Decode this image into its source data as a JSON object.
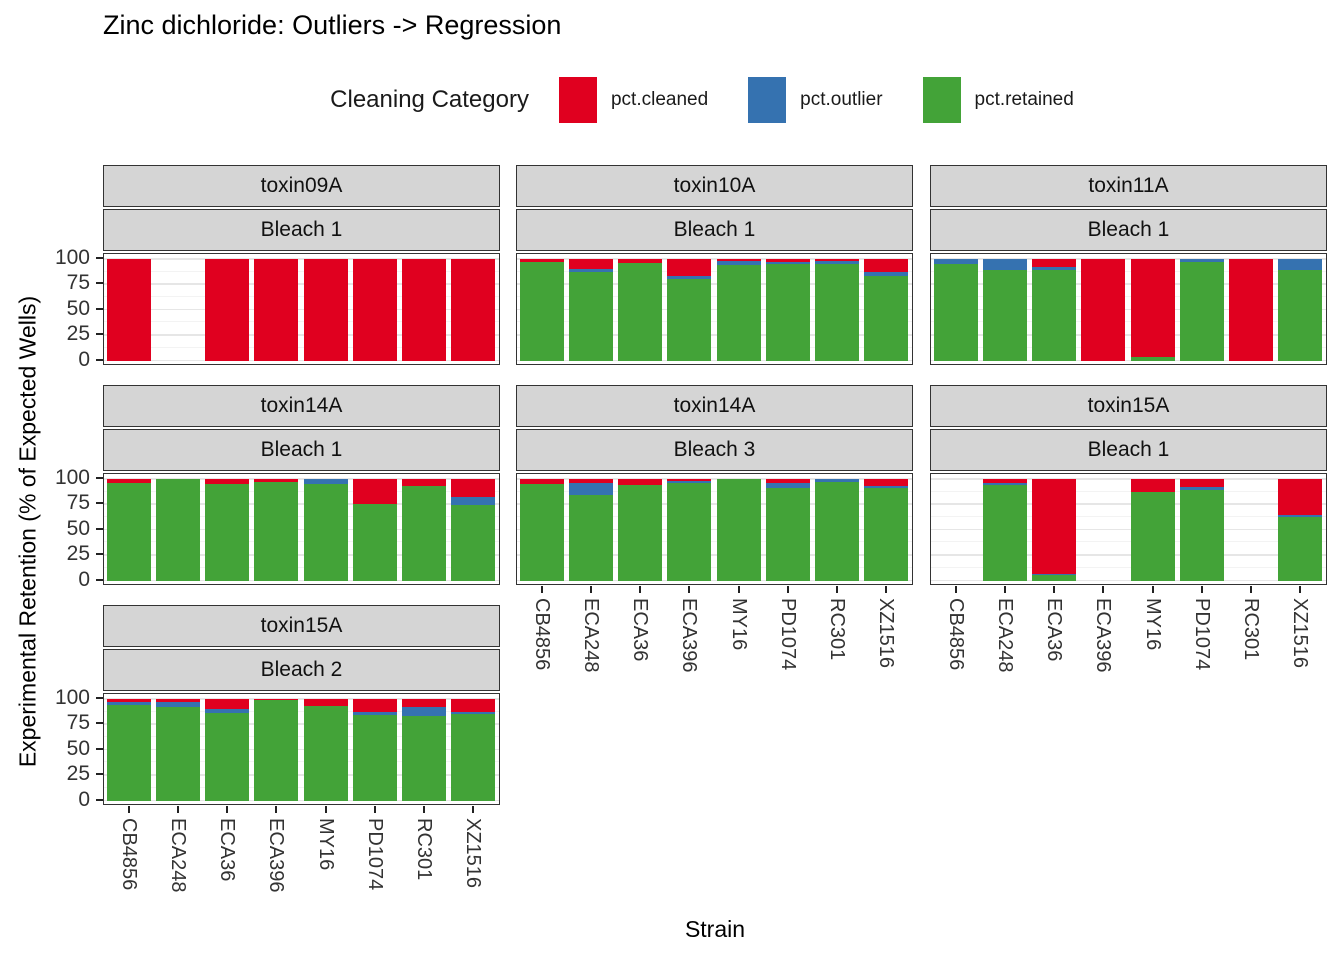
{
  "title": "Zinc dichloride: Outliers -> Regression",
  "legend": {
    "title": "Cleaning Category",
    "items": [
      {
        "label": "pct.cleaned",
        "color": "#e0001f"
      },
      {
        "label": "pct.outlier",
        "color": "#3572b0"
      },
      {
        "label": "pct.retained",
        "color": "#43a338"
      }
    ]
  },
  "axes": {
    "x_title": "Strain",
    "y_title": "Experimental Retention (% of Expected Wells)",
    "y_ticks": [
      100,
      75,
      50,
      25,
      0
    ]
  },
  "colors": {
    "cleaned": "#e0001f",
    "outlier": "#3572b0",
    "retained": "#43a338"
  },
  "chart_data": {
    "type": "bar",
    "stacked": true,
    "value_unit": "percent of expected wells",
    "ylim": [
      0,
      100
    ],
    "grid": true,
    "legend_position": "top",
    "categories": [
      "CB4856",
      "ECA248",
      "ECA36",
      "ECA396",
      "MY16",
      "PD1074",
      "RC301",
      "XZ1516"
    ],
    "series_names": [
      "pct.cleaned",
      "pct.outlier",
      "pct.retained"
    ],
    "panels": [
      {
        "toxin": "toxin09A",
        "bleach": "Bleach 1",
        "row": 0,
        "col": 0,
        "x_labels": false,
        "bars": [
          {
            "cleaned": 100,
            "outlier": 0,
            "retained": 0
          },
          null,
          {
            "cleaned": 100,
            "outlier": 0,
            "retained": 0
          },
          {
            "cleaned": 100,
            "outlier": 0,
            "retained": 0
          },
          {
            "cleaned": 100,
            "outlier": 0,
            "retained": 0
          },
          {
            "cleaned": 100,
            "outlier": 0,
            "retained": 0
          },
          {
            "cleaned": 100,
            "outlier": 0,
            "retained": 0
          },
          {
            "cleaned": 100,
            "outlier": 0,
            "retained": 0
          }
        ]
      },
      {
        "toxin": "toxin10A",
        "bleach": "Bleach 1",
        "row": 0,
        "col": 1,
        "x_labels": false,
        "bars": [
          {
            "cleaned": 3,
            "outlier": 0,
            "retained": 97
          },
          {
            "cleaned": 10,
            "outlier": 3,
            "retained": 87
          },
          {
            "cleaned": 4,
            "outlier": 0,
            "retained": 96
          },
          {
            "cleaned": 17,
            "outlier": 3,
            "retained": 80
          },
          {
            "cleaned": 2,
            "outlier": 4,
            "retained": 94
          },
          {
            "cleaned": 3,
            "outlier": 2,
            "retained": 95
          },
          {
            "cleaned": 2,
            "outlier": 3,
            "retained": 95
          },
          {
            "cleaned": 13,
            "outlier": 4,
            "retained": 83
          }
        ]
      },
      {
        "toxin": "toxin11A",
        "bleach": "Bleach 1",
        "row": 0,
        "col": 2,
        "x_labels": false,
        "bars": [
          {
            "cleaned": 0,
            "outlier": 5,
            "retained": 95
          },
          {
            "cleaned": 0,
            "outlier": 11,
            "retained": 89
          },
          {
            "cleaned": 8,
            "outlier": 3,
            "retained": 89
          },
          {
            "cleaned": 100,
            "outlier": 0,
            "retained": 0
          },
          {
            "cleaned": 97,
            "outlier": 0,
            "retained": 3
          },
          {
            "cleaned": 0,
            "outlier": 3,
            "retained": 97
          },
          {
            "cleaned": 100,
            "outlier": 0,
            "retained": 0
          },
          {
            "cleaned": 0,
            "outlier": 11,
            "retained": 89
          }
        ]
      },
      {
        "toxin": "toxin14A",
        "bleach": "Bleach 1",
        "row": 1,
        "col": 0,
        "x_labels": false,
        "bars": [
          {
            "cleaned": 4,
            "outlier": 0,
            "retained": 96
          },
          {
            "cleaned": 0,
            "outlier": 0,
            "retained": 100
          },
          {
            "cleaned": 5,
            "outlier": 0,
            "retained": 95
          },
          {
            "cleaned": 3,
            "outlier": 0,
            "retained": 97
          },
          {
            "cleaned": 0,
            "outlier": 5,
            "retained": 95
          },
          {
            "cleaned": 25,
            "outlier": 0,
            "retained": 75
          },
          {
            "cleaned": 7,
            "outlier": 0,
            "retained": 93
          },
          {
            "cleaned": 18,
            "outlier": 8,
            "retained": 74
          }
        ]
      },
      {
        "toxin": "toxin14A",
        "bleach": "Bleach 3",
        "row": 1,
        "col": 1,
        "x_labels": true,
        "bars": [
          {
            "cleaned": 5,
            "outlier": 0,
            "retained": 95
          },
          {
            "cleaned": 4,
            "outlier": 12,
            "retained": 84
          },
          {
            "cleaned": 6,
            "outlier": 0,
            "retained": 94
          },
          {
            "cleaned": 2,
            "outlier": 2,
            "retained": 96
          },
          {
            "cleaned": 0,
            "outlier": 0,
            "retained": 100
          },
          {
            "cleaned": 4,
            "outlier": 5,
            "retained": 91
          },
          {
            "cleaned": 0,
            "outlier": 3,
            "retained": 97
          },
          {
            "cleaned": 7,
            "outlier": 2,
            "retained": 91
          }
        ]
      },
      {
        "toxin": "toxin15A",
        "bleach": "Bleach 1",
        "row": 1,
        "col": 2,
        "x_labels": true,
        "bars": [
          null,
          {
            "cleaned": 4,
            "outlier": 2,
            "retained": 94
          },
          {
            "cleaned": 94,
            "outlier": 1,
            "retained": 5
          },
          null,
          {
            "cleaned": 13,
            "outlier": 0,
            "retained": 87
          },
          {
            "cleaned": 8,
            "outlier": 3,
            "retained": 89
          },
          null,
          {
            "cleaned": 35,
            "outlier": 2,
            "retained": 63
          }
        ]
      },
      {
        "toxin": "toxin15A",
        "bleach": "Bleach 2",
        "row": 2,
        "col": 0,
        "x_labels": true,
        "bars": [
          {
            "cleaned": 3,
            "outlier": 3,
            "retained": 94
          },
          {
            "cleaned": 3,
            "outlier": 5,
            "retained": 92
          },
          {
            "cleaned": 10,
            "outlier": 4,
            "retained": 86
          },
          {
            "cleaned": 1,
            "outlier": 0,
            "retained": 99
          },
          {
            "cleaned": 7,
            "outlier": 0,
            "retained": 93
          },
          {
            "cleaned": 13,
            "outlier": 3,
            "retained": 84
          },
          {
            "cleaned": 8,
            "outlier": 9,
            "retained": 83
          },
          {
            "cleaned": 13,
            "outlier": 2,
            "retained": 85
          }
        ]
      }
    ]
  }
}
